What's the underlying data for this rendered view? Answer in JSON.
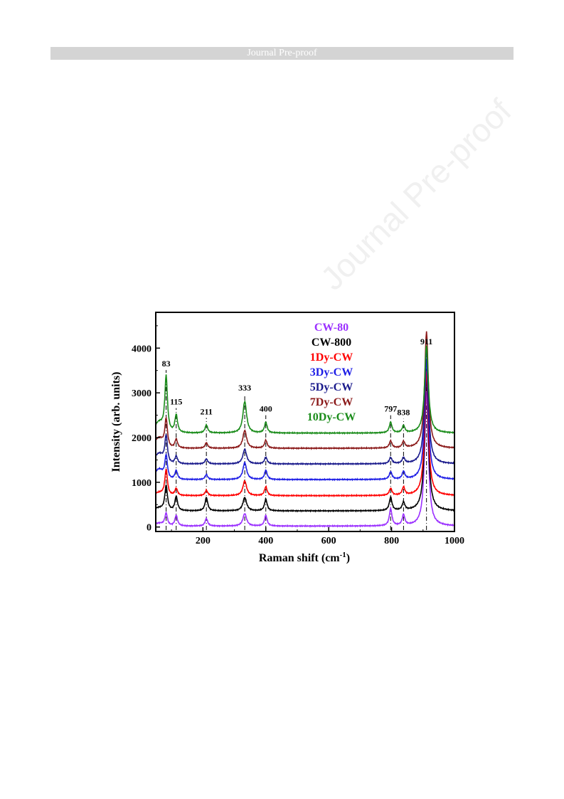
{
  "header": {
    "banner_text": "Journal Pre-proof"
  },
  "watermark": "Journal Pre-proof",
  "chart_data": {
    "type": "line",
    "xlabel": "Raman shift (cm",
    "xlabel_sup": "-1",
    "xlabel_close": ")",
    "ylabel": "Intensity (arb. units)",
    "xlim": [
      50,
      1000
    ],
    "ylim": [
      -100,
      4800
    ],
    "x_ticks": [
      200,
      400,
      600,
      800,
      1000
    ],
    "y_ticks": [
      0,
      1000,
      2000,
      3000,
      4000
    ],
    "legend_position": "top-center",
    "peaks": [
      {
        "position": 83,
        "label": "83"
      },
      {
        "position": 115,
        "label": "115"
      },
      {
        "position": 211,
        "label": "211"
      },
      {
        "position": 333,
        "label": "333"
      },
      {
        "position": 400,
        "label": "400"
      },
      {
        "position": 797,
        "label": "797"
      },
      {
        "position": 838,
        "label": "838"
      },
      {
        "position": 911,
        "label": "911"
      }
    ],
    "series": [
      {
        "name": "CW-80",
        "color": "#9b30ff",
        "baseline": 20,
        "peak_heights": [
          280,
          240,
          170,
          280,
          240,
          380,
          240,
          3000
        ]
      },
      {
        "name": "CW-800",
        "color": "#000000",
        "baseline": 360,
        "peak_heights": [
          560,
          320,
          300,
          300,
          260,
          300,
          180,
          3000
        ]
      },
      {
        "name": "1Dy-CW",
        "color": "#ff0000",
        "baseline": 700,
        "peak_heights": [
          580,
          160,
          120,
          330,
          200,
          160,
          180,
          2800
        ]
      },
      {
        "name": "3Dy-CW",
        "color": "#1e1ee6",
        "baseline": 1060,
        "peak_heights": [
          520,
          200,
          110,
          380,
          210,
          170,
          170,
          2700
        ]
      },
      {
        "name": "5Dy-CW",
        "color": "#1a1a8c",
        "baseline": 1410,
        "peak_heights": [
          620,
          170,
          110,
          330,
          150,
          140,
          130,
          2600
        ]
      },
      {
        "name": "7Dy-CW",
        "color": "#8b1a1a",
        "baseline": 1760,
        "peak_heights": [
          640,
          200,
          120,
          400,
          180,
          160,
          140,
          2600
        ]
      },
      {
        "name": "10Dy-CW",
        "color": "#1a8c1a",
        "baseline": 2100,
        "peak_heights": [
          1250,
          400,
          180,
          710,
          240,
          240,
          160,
          1960
        ]
      }
    ]
  }
}
